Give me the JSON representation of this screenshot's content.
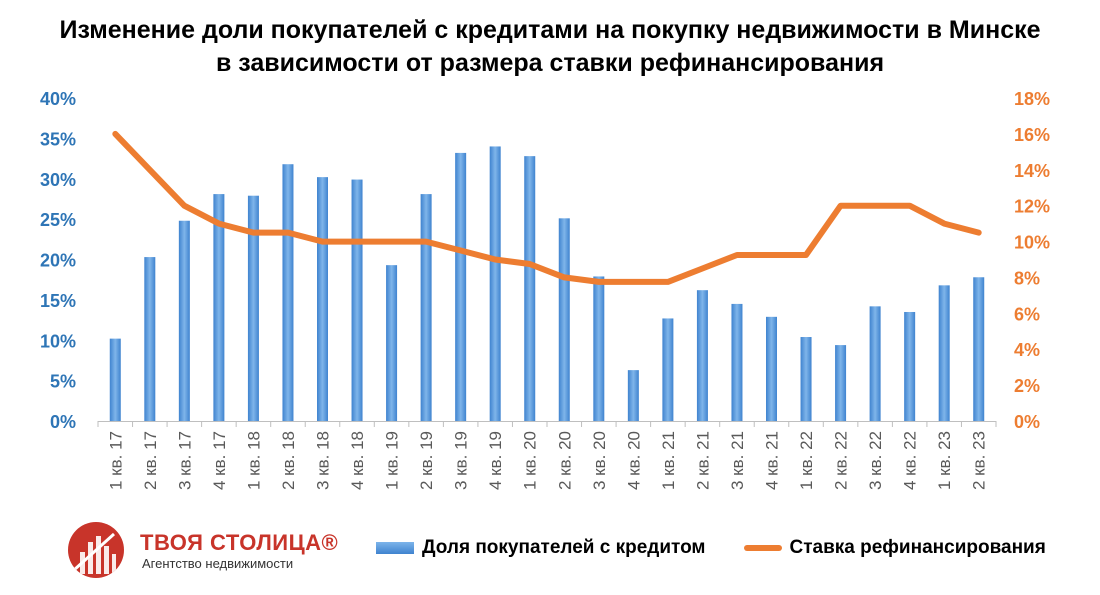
{
  "title": {
    "line1": "Изменение доли покупателей с кредитами на покупку недвижимости в Минске",
    "line2": "в зависимости от размера ставки рефинансирования"
  },
  "logo": {
    "name": "ТВОЯ СТОЛИЦА®",
    "subtitle": "Агентство недвижимости"
  },
  "colors": {
    "bar": "#5b9bd5",
    "line": "#ed7d31",
    "left_axis": "#2e75b6",
    "right_axis": "#ed7d31",
    "brand": "#c8342a"
  },
  "chart_data": {
    "type": "bar",
    "categories": [
      "1 кв. 17",
      "2 кв. 17",
      "3 кв. 17",
      "4 кв. 17",
      "1 кв. 18",
      "2 кв. 18",
      "3 кв. 18",
      "4 кв. 18",
      "1 кв. 19",
      "2 кв. 19",
      "3 кв. 19",
      "4 кв. 19",
      "1 кв. 20",
      "2 кв. 20",
      "3 кв. 20",
      "4 кв. 20",
      "1 кв. 21",
      "2 кв. 21",
      "3 кв. 21",
      "4 кв. 21",
      "1 кв. 22",
      "2 кв. 22",
      "3 кв. 22",
      "4 кв. 22",
      "1 кв. 23",
      "2 кв. 23"
    ],
    "series": [
      {
        "name": "Доля покупателей с кредитом",
        "type": "bar",
        "axis": "left",
        "values": [
          10.2,
          20.3,
          24.8,
          28.1,
          27.9,
          31.8,
          30.2,
          29.9,
          19.3,
          28.1,
          33.2,
          34.0,
          32.8,
          25.1,
          17.9,
          6.3,
          12.7,
          16.2,
          14.5,
          12.9,
          10.4,
          9.4,
          14.2,
          13.5,
          16.8,
          17.8
        ]
      },
      {
        "name": "Ставка рефинансирования",
        "type": "line",
        "axis": "right",
        "values": [
          16,
          14,
          12,
          11,
          10.5,
          10.5,
          10,
          10,
          10,
          10,
          9.5,
          9,
          8.75,
          8,
          7.75,
          7.75,
          7.75,
          8.5,
          9.25,
          9.25,
          9.25,
          12,
          12,
          12,
          11,
          10.5
        ]
      }
    ],
    "left_axis": {
      "ylim": [
        0,
        40
      ],
      "ticks": [
        "0%",
        "5%",
        "10%",
        "15%",
        "20%",
        "25%",
        "30%",
        "35%",
        "40%"
      ]
    },
    "right_axis": {
      "ylim": [
        0,
        18
      ],
      "ticks": [
        "0%",
        "2%",
        "4%",
        "6%",
        "8%",
        "10%",
        "12%",
        "14%",
        "16%",
        "18%"
      ]
    },
    "legend": "bottom",
    "grid": false
  }
}
